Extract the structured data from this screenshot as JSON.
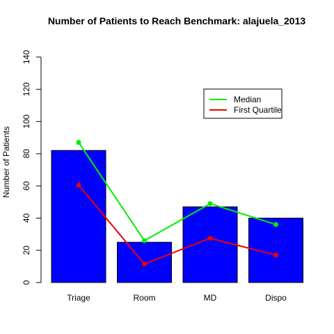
{
  "chart_data": {
    "type": "bar",
    "title": "Number of Patients to Reach Benchmark: alajuela_2013",
    "xlabel": "",
    "ylabel": "Number of Patients",
    "ylim": [
      0,
      140
    ],
    "yticks": [
      "0",
      "20",
      "40",
      "60",
      "80",
      "100",
      "120",
      "140"
    ],
    "categories": [
      "Triage",
      "Room",
      "MD",
      "Dispo"
    ],
    "values": [
      82,
      25,
      47,
      40
    ],
    "bar_color": "#0000FF",
    "series": [
      {
        "name": "Median",
        "type": "line",
        "color": "#00EE00",
        "values": [
          87,
          26,
          49,
          36
        ]
      },
      {
        "name": "First Quartile",
        "type": "line",
        "color": "#EE0000",
        "values": [
          60.5,
          11.5,
          27.5,
          17
        ]
      }
    ],
    "legend_position": "top-right",
    "grid": false
  }
}
